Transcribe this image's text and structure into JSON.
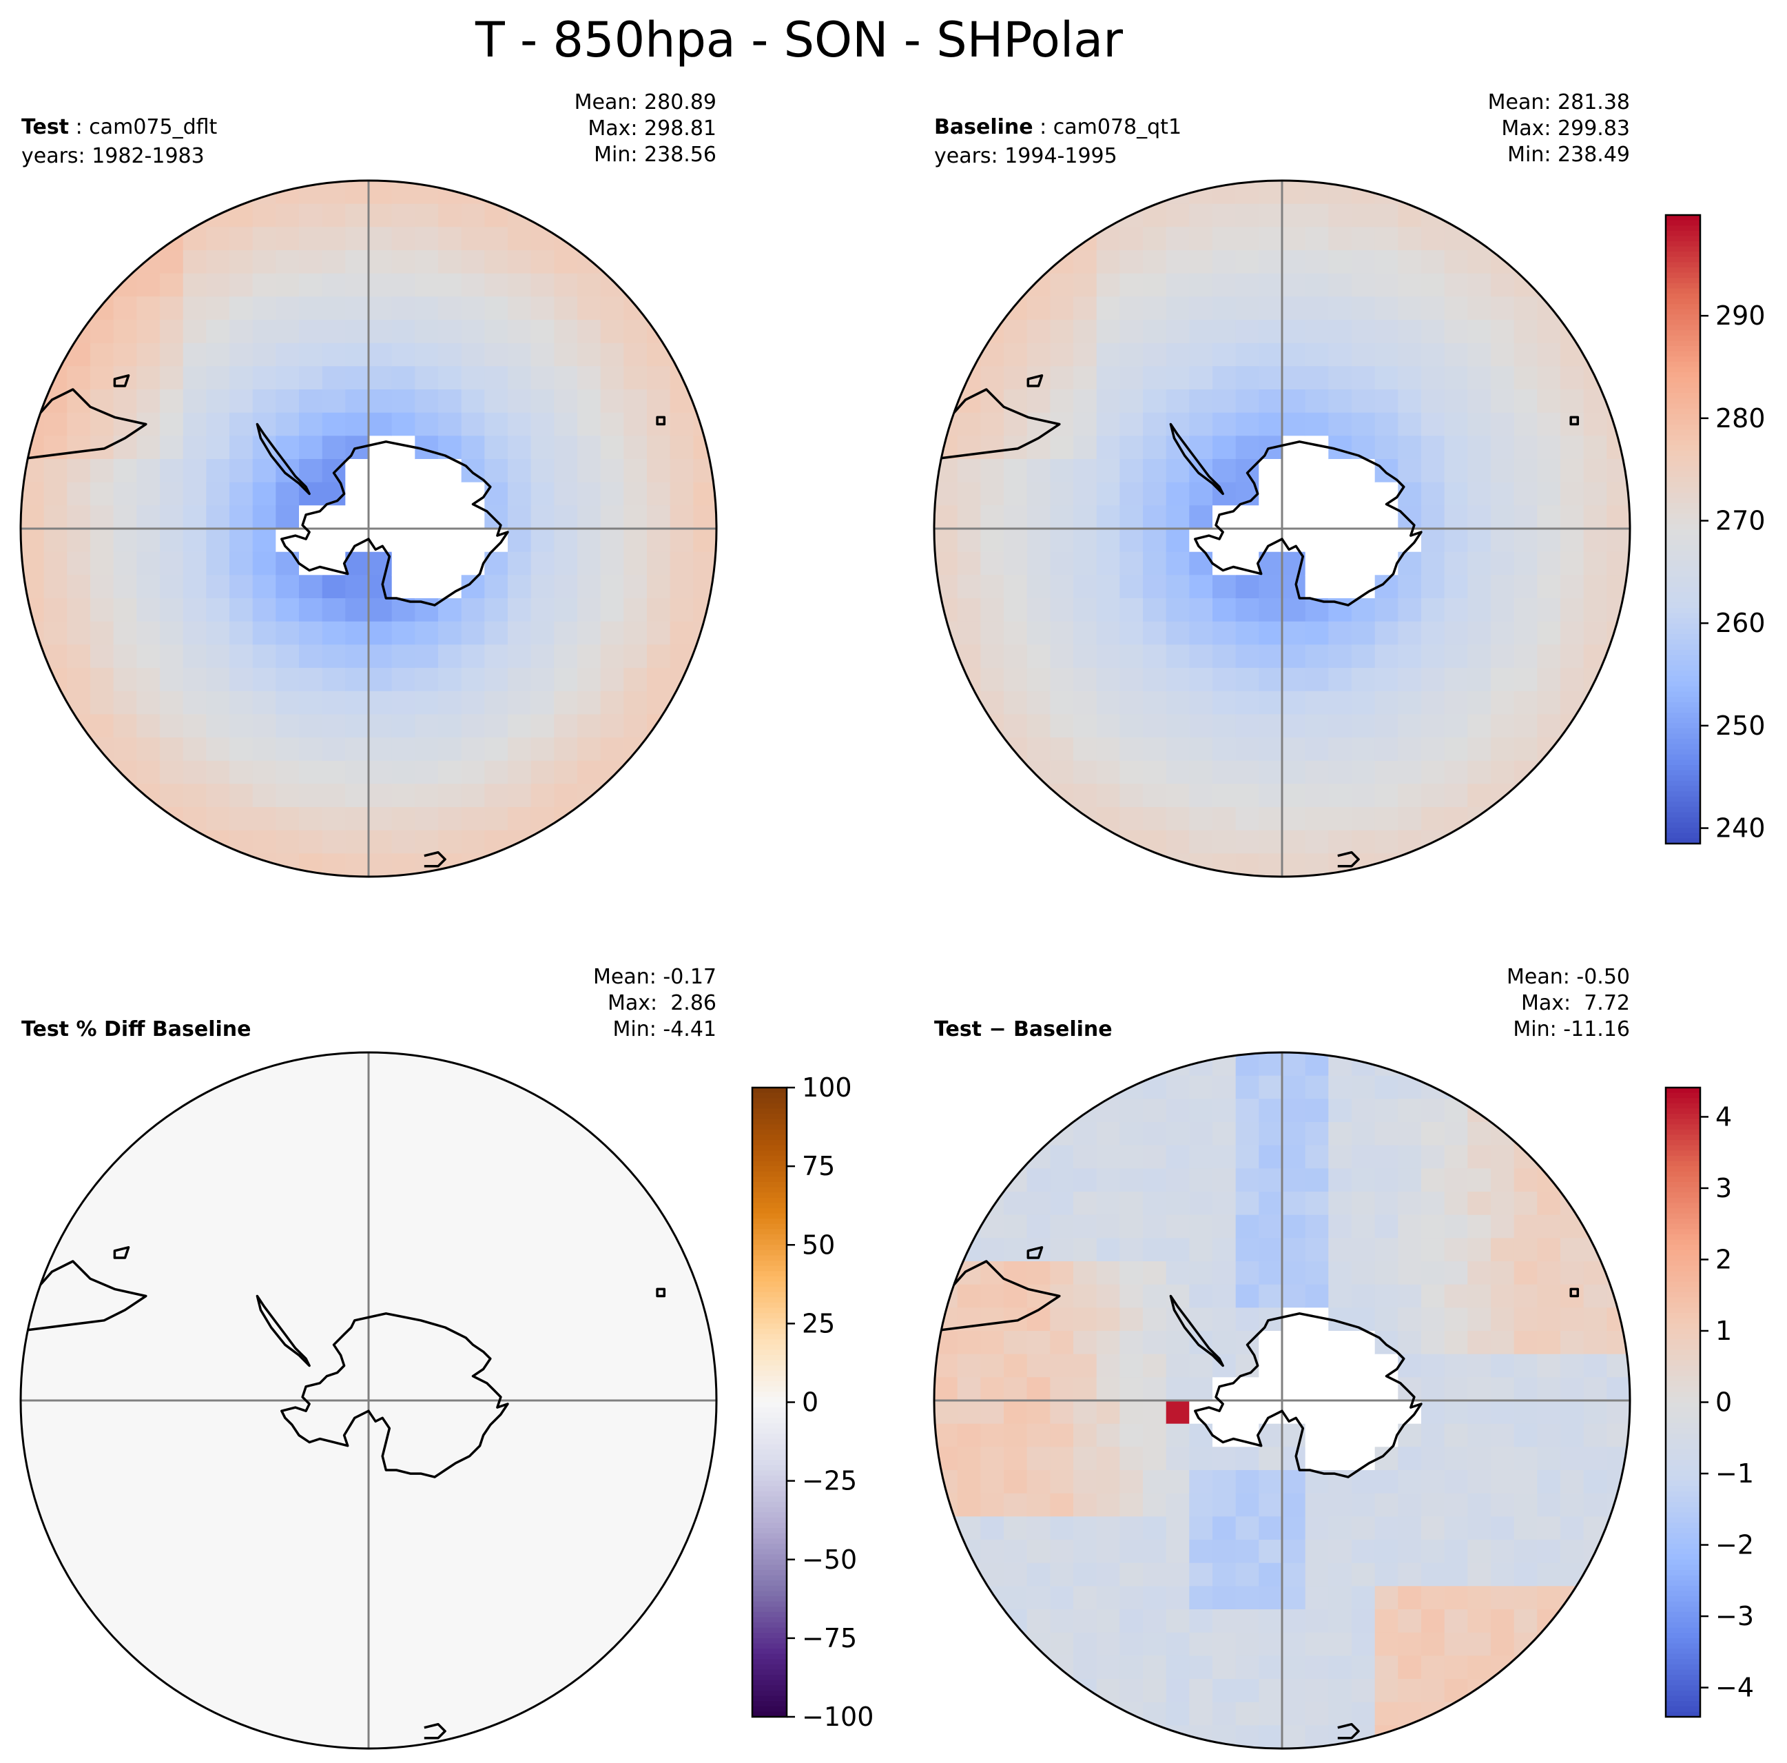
{
  "figure": {
    "title": "T - 850hpa - SON - SHPolar"
  },
  "colors": {
    "background": "#ffffff",
    "land_mask": "#ffffff",
    "gridline": "#808080",
    "coastline": "#000000",
    "coolwarm": [
      "#3b4cc0",
      "#6788ee",
      "#9abbff",
      "#c9d7f0",
      "#dddddd",
      "#f2cbb7",
      "#f7a889",
      "#e26952",
      "#b40426"
    ],
    "puor": [
      "#2d004b",
      "#542788",
      "#8073ac",
      "#b2abd2",
      "#d8daeb",
      "#f7f7f7",
      "#fee0b6",
      "#fdb863",
      "#e08214",
      "#b35806",
      "#7f3b08"
    ]
  },
  "chart_data": [
    {
      "type": "heatmap",
      "projection": "south-polar-stereographic",
      "label_bold": "Test",
      "label_rest": " : cam075_dflt",
      "years": "years: 1982-1983",
      "stats": {
        "mean": "Mean: 280.89",
        "max": "Max: 298.81",
        "min": "Min: 238.56"
      },
      "field": {
        "pole_value": 248,
        "edge_value": 276,
        "min": 238.56,
        "max": 298.81
      },
      "shared_colorbar": true
    },
    {
      "type": "heatmap",
      "projection": "south-polar-stereographic",
      "label_bold": "Baseline",
      "label_rest": " : cam078_qt1",
      "years": "years: 1994-1995",
      "stats": {
        "mean": "Mean: 281.38",
        "max": "Max: 299.83",
        "min": "Min: 238.49"
      },
      "field": {
        "pole_value": 250,
        "edge_value": 273,
        "min": 238.49,
        "max": 299.83
      },
      "colorbar": {
        "cmap": "coolwarm",
        "range": [
          238.49,
          299.83
        ],
        "ticks": [
          240,
          250,
          260,
          270,
          280,
          290
        ],
        "tick_labels": [
          "240",
          "250",
          "260",
          "270",
          "280",
          "290"
        ]
      }
    },
    {
      "type": "heatmap",
      "projection": "south-polar-stereographic",
      "label_bold": "Test % Diff Baseline",
      "label_rest": "",
      "years": "",
      "stats": {
        "mean": "Mean: -0.17",
        "max": "Max:  2.86",
        "min": "Min: -4.41"
      },
      "field": {
        "uniform_value": -0.17
      },
      "colorbar": {
        "cmap": "puor",
        "range": [
          -100,
          100
        ],
        "ticks": [
          100,
          75,
          50,
          25,
          0,
          -25,
          -50,
          -75,
          -100
        ],
        "tick_labels": [
          "100",
          "75",
          "50",
          "25",
          "0",
          "−25",
          "−50",
          "−75",
          "−100"
        ]
      }
    },
    {
      "type": "heatmap",
      "projection": "south-polar-stereographic",
      "label_bold": "Test",
      "label_rest": " − Baseline",
      "years": "",
      "stats": {
        "mean": "Mean: -0.50",
        "max": "Max:  7.72",
        "min": "Min: -11.16"
      },
      "field": {
        "min": -11.16,
        "max": 7.72
      },
      "colorbar": {
        "cmap": "coolwarm",
        "range": [
          -4.41,
          4.41
        ],
        "ticks": [
          4,
          3,
          2,
          1,
          0,
          -1,
          -2,
          -3,
          -4
        ],
        "tick_labels": [
          "4",
          "3",
          "2",
          "1",
          "0",
          "−1",
          "−2",
          "−3",
          "−4"
        ]
      }
    }
  ]
}
